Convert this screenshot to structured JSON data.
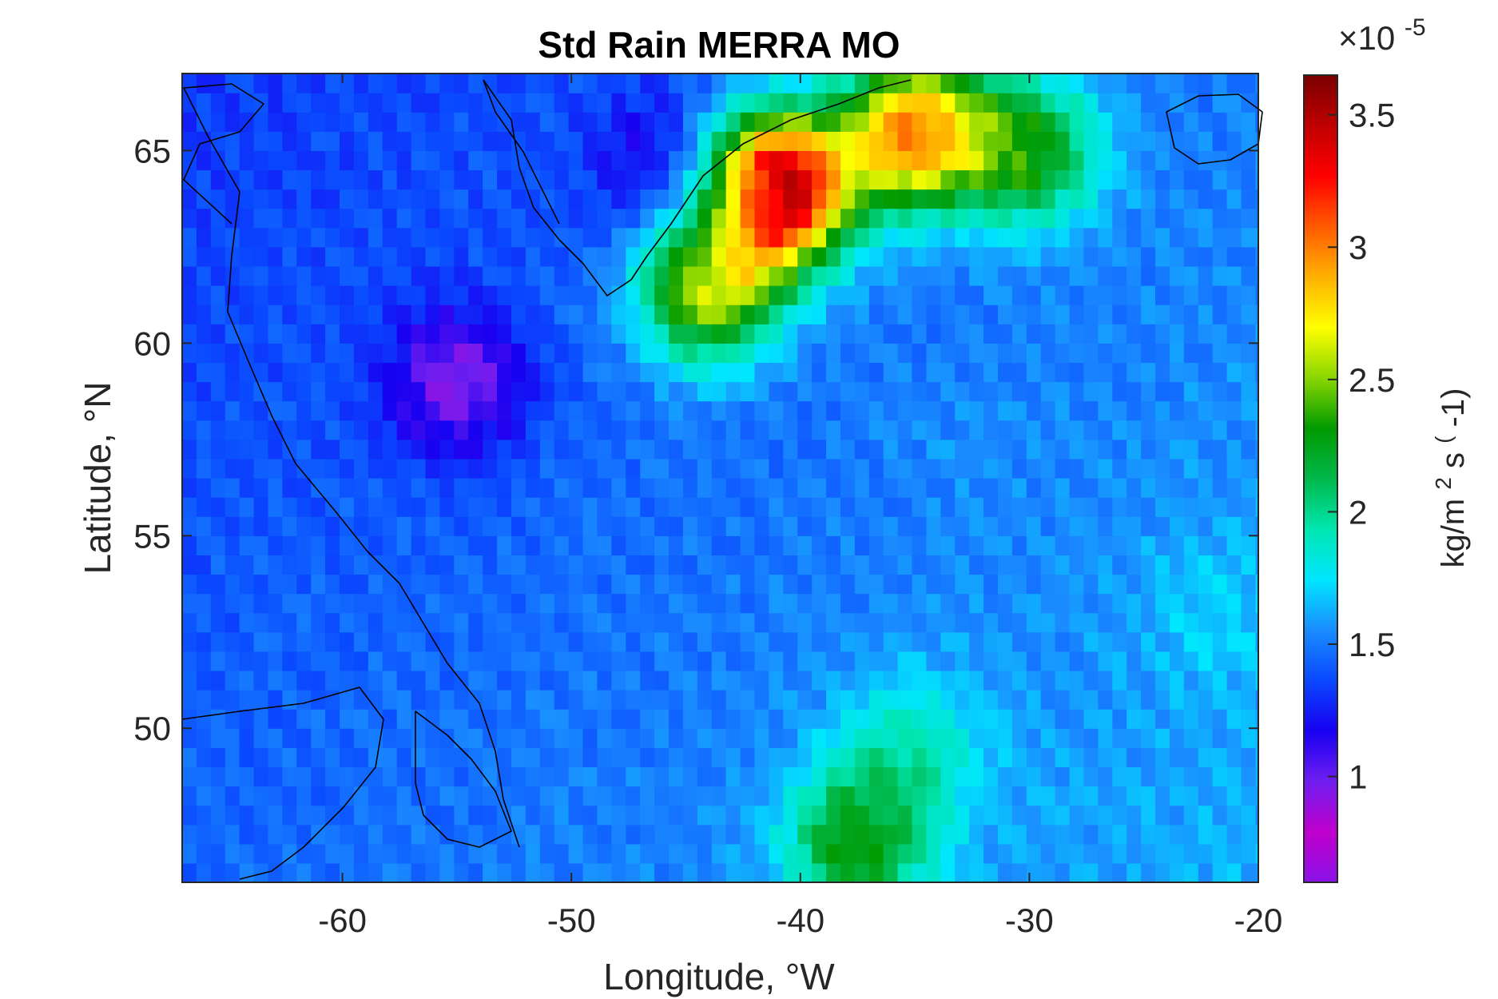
{
  "chart_data": {
    "type": "heatmap",
    "title": "Std Rain MERRA MO",
    "xlabel": "Longitude, °W",
    "ylabel": "Latitude, °N",
    "xlim": [
      -67,
      -20
    ],
    "ylim": [
      46,
      67
    ],
    "xticks": [
      -60,
      -50,
      -40,
      -30,
      -20
    ],
    "yticks": [
      50,
      55,
      60,
      65
    ],
    "grid": false,
    "colorbar": {
      "label_parts": {
        "base": "kg/m",
        "sup1": "2",
        "mid": "s",
        "sup2": "(",
        "tail": "-1)"
      },
      "exponent_prefix": "×10",
      "exponent_power": "-5",
      "range": [
        0.6,
        3.65
      ],
      "ticks": [
        1,
        1.5,
        2,
        2.5,
        3,
        3.5
      ],
      "colors": [
        "#8a12e8",
        "#c000cc",
        "#6f1ef0",
        "#1800f0",
        "#0a48ff",
        "#1a8cff",
        "#00e6ff",
        "#00e6b0",
        "#00b84a",
        "#009a00",
        "#8ad600",
        "#ffff00",
        "#ffb000",
        "#ff5a00",
        "#ff0000",
        "#c00000",
        "#7a0000"
      ]
    },
    "grid_cells": {
      "lon_step": 0.625,
      "lat_step": 0.5,
      "features": [
        {
          "name": "greenland-east-coast-maximum",
          "lon": -41,
          "lat": 64,
          "value": 3.6
        },
        {
          "name": "greenland-east-coast-band",
          "lon": -35,
          "lat": 65.5,
          "value": 3.0
        },
        {
          "name": "south-greenland-coast",
          "lon": -44,
          "lat": 61.5,
          "value": 2.6
        },
        {
          "name": "iceland-sea-green",
          "lon": -30,
          "lat": 65,
          "value": 2.3
        },
        {
          "name": "mid-atlantic-south-green",
          "lon": -37.5,
          "lat": 47,
          "value": 2.3
        },
        {
          "name": "mid-atlantic-south-cyan",
          "lon": -35,
          "lat": 49.5,
          "value": 1.9
        },
        {
          "name": "labrador-sea-minimum",
          "lon": -55,
          "lat": 59,
          "value": 0.95
        },
        {
          "name": "interior-greenland-low",
          "lon": -46,
          "lat": 64.5,
          "value": 1.1
        },
        {
          "name": "north-atlantic-blue",
          "lon": -33,
          "lat": 57,
          "value": 1.55
        },
        {
          "name": "eastern-open-ocean",
          "lon": -22,
          "lat": 53,
          "value": 1.7
        }
      ]
    }
  }
}
